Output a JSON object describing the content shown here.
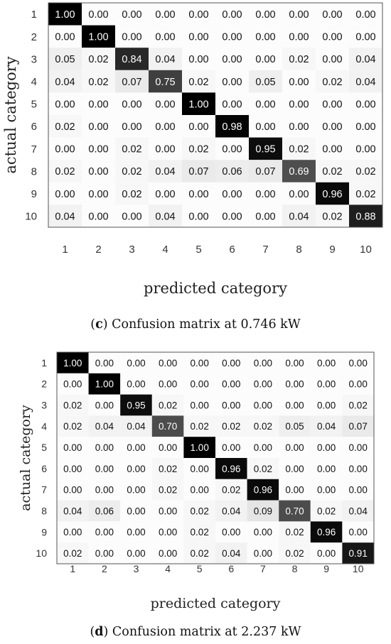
{
  "chart_data": [
    {
      "type": "heatmap",
      "panel": "c",
      "caption_label": "c",
      "caption_text": " Confusion matrix at 0.746 kW",
      "xlabel": "predicted category",
      "ylabel": "actual category",
      "categories": [
        "1",
        "2",
        "3",
        "4",
        "5",
        "6",
        "7",
        "8",
        "9",
        "10"
      ],
      "value_range": [
        0,
        1
      ],
      "colormap": "white-to-black",
      "values": [
        [
          1.0,
          0.0,
          0.0,
          0.0,
          0.0,
          0.0,
          0.0,
          0.0,
          0.0,
          0.0
        ],
        [
          0.0,
          1.0,
          0.0,
          0.0,
          0.0,
          0.0,
          0.0,
          0.0,
          0.0,
          0.0
        ],
        [
          0.05,
          0.02,
          0.84,
          0.04,
          0.0,
          0.0,
          0.0,
          0.02,
          0.0,
          0.04
        ],
        [
          0.04,
          0.02,
          0.07,
          0.75,
          0.02,
          0.0,
          0.05,
          0.0,
          0.02,
          0.04
        ],
        [
          0.0,
          0.0,
          0.0,
          0.0,
          1.0,
          0.0,
          0.0,
          0.0,
          0.0,
          0.0
        ],
        [
          0.02,
          0.0,
          0.0,
          0.0,
          0.0,
          0.98,
          0.0,
          0.0,
          0.0,
          0.0
        ],
        [
          0.0,
          0.0,
          0.02,
          0.0,
          0.02,
          0.0,
          0.95,
          0.02,
          0.0,
          0.0
        ],
        [
          0.02,
          0.0,
          0.02,
          0.04,
          0.07,
          0.06,
          0.07,
          0.69,
          0.02,
          0.02
        ],
        [
          0.0,
          0.0,
          0.02,
          0.0,
          0.0,
          0.0,
          0.0,
          0.0,
          0.96,
          0.02
        ],
        [
          0.04,
          0.0,
          0.0,
          0.04,
          0.0,
          0.0,
          0.0,
          0.04,
          0.02,
          0.88
        ]
      ]
    },
    {
      "type": "heatmap",
      "panel": "d",
      "caption_label": "d",
      "caption_text": " Confusion matrix at 2.237 kW",
      "xlabel": "predicted category",
      "ylabel": "actual category",
      "categories": [
        "1",
        "2",
        "3",
        "4",
        "5",
        "6",
        "7",
        "8",
        "9",
        "10"
      ],
      "value_range": [
        0,
        1
      ],
      "colormap": "white-to-black",
      "values": [
        [
          1.0,
          0.0,
          0.0,
          0.0,
          0.0,
          0.0,
          0.0,
          0.0,
          0.0,
          0.0
        ],
        [
          0.0,
          1.0,
          0.0,
          0.0,
          0.0,
          0.0,
          0.0,
          0.0,
          0.0,
          0.0
        ],
        [
          0.02,
          0.0,
          0.95,
          0.02,
          0.0,
          0.0,
          0.0,
          0.0,
          0.0,
          0.02
        ],
        [
          0.02,
          0.04,
          0.04,
          0.7,
          0.02,
          0.02,
          0.02,
          0.05,
          0.04,
          0.07
        ],
        [
          0.0,
          0.0,
          0.0,
          0.0,
          1.0,
          0.0,
          0.0,
          0.0,
          0.0,
          0.0
        ],
        [
          0.0,
          0.0,
          0.0,
          0.02,
          0.0,
          0.96,
          0.02,
          0.0,
          0.0,
          0.0
        ],
        [
          0.0,
          0.0,
          0.0,
          0.02,
          0.0,
          0.02,
          0.96,
          0.0,
          0.0,
          0.0
        ],
        [
          0.04,
          0.06,
          0.0,
          0.0,
          0.02,
          0.04,
          0.09,
          0.7,
          0.02,
          0.04
        ],
        [
          0.0,
          0.0,
          0.0,
          0.0,
          0.02,
          0.0,
          0.0,
          0.02,
          0.96,
          0.0
        ],
        [
          0.02,
          0.0,
          0.0,
          0.0,
          0.02,
          0.04,
          0.0,
          0.02,
          0.0,
          0.91
        ]
      ]
    }
  ]
}
